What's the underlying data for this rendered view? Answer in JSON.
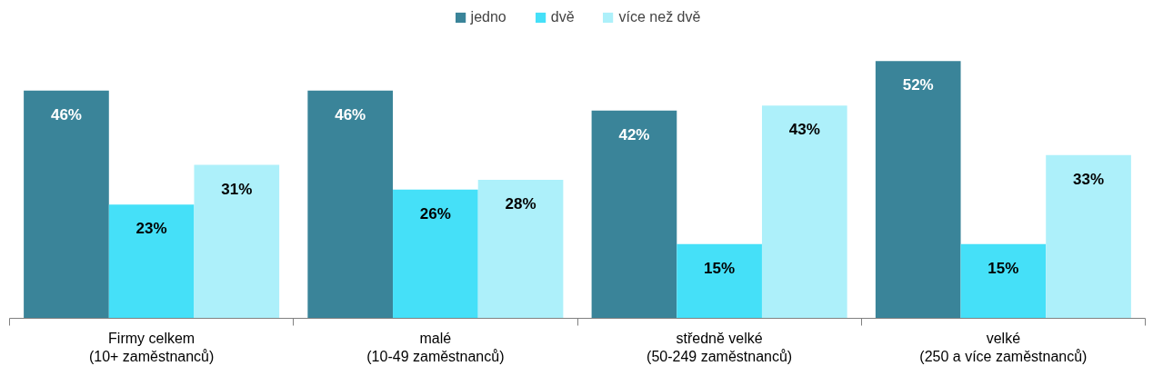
{
  "chart_data": {
    "type": "bar",
    "categories": [
      "Firmy celkem\n(10+ zaměstnanců)",
      "malé\n(10-49 zaměstnanců)",
      "středně velké\n(50-249 zaměstnanců)",
      "velké\n(250 a více zaměstnanců)"
    ],
    "series": [
      {
        "name": "jedno",
        "color": "#3a8499",
        "values": [
          46,
          46,
          42,
          52
        ],
        "value_labels": [
          "46%",
          "46%",
          "42%",
          "52%"
        ]
      },
      {
        "name": "dvě",
        "color": "#45e0f8",
        "values": [
          23,
          26,
          15,
          15
        ],
        "value_labels": [
          "23%",
          "26%",
          "15%",
          "15%"
        ]
      },
      {
        "name": "více než dvě",
        "color": "#adf0fa",
        "values": [
          31,
          28,
          43,
          33
        ],
        "value_labels": [
          "31%",
          "28%",
          "43%",
          "33%"
        ]
      }
    ],
    "legend": "top"
  }
}
